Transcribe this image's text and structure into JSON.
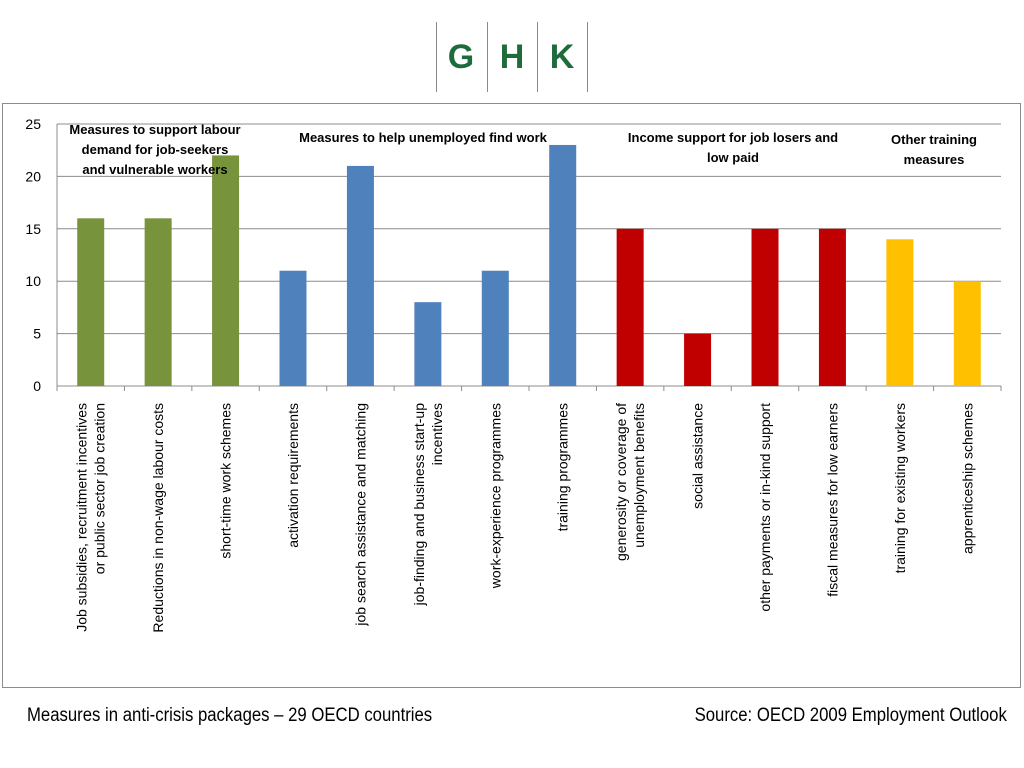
{
  "logo": {
    "letters": [
      "G",
      "H",
      "K"
    ],
    "color": "#1e6b3c"
  },
  "caption": "Measures in anti-crisis packages – 29 OECD countries",
  "source": "Source: OECD 2009 Employment Outlook",
  "chart_data": {
    "type": "bar",
    "ylim": [
      0,
      25
    ],
    "yticks": [
      0,
      5,
      10,
      15,
      20,
      25
    ],
    "grid": true,
    "categories": [
      [
        "Job subsidies, recruitment  incentives",
        "or public sector job creation"
      ],
      [
        "Reductions in non-wage labour  costs"
      ],
      [
        "short-time work  schemes"
      ],
      [
        "activation  requirements"
      ],
      [
        "job search assistance  and matching"
      ],
      [
        "job-finding and business start-up",
        "incentives"
      ],
      [
        "work-experience programmes"
      ],
      [
        "training programmes"
      ],
      [
        "generosity or coverage of",
        "unemployment benefits"
      ],
      [
        "social assistance"
      ],
      [
        "other payments or in-kind support"
      ],
      [
        "fiscal measures for low earners"
      ],
      [
        "training for existing workers"
      ],
      [
        "apprenticeship schemes"
      ]
    ],
    "values": [
      16,
      16,
      22,
      11,
      21,
      8,
      11,
      23,
      15,
      5,
      15,
      15,
      14,
      10
    ],
    "colors": [
      "#77933c",
      "#77933c",
      "#77933c",
      "#4f81bd",
      "#4f81bd",
      "#4f81bd",
      "#4f81bd",
      "#4f81bd",
      "#c00000",
      "#c00000",
      "#c00000",
      "#c00000",
      "#ffc000",
      "#ffc000"
    ],
    "groups": [
      {
        "label": [
          "Measures to support  labour",
          "demand  for  job-seekers",
          "and vulnerable workers"
        ]
      },
      {
        "label": [
          "Measures to help unemployed  find work"
        ]
      },
      {
        "label": [
          "Income support  for job losers and",
          "low paid"
        ]
      },
      {
        "label": [
          "Other training",
          "measures"
        ]
      }
    ]
  }
}
